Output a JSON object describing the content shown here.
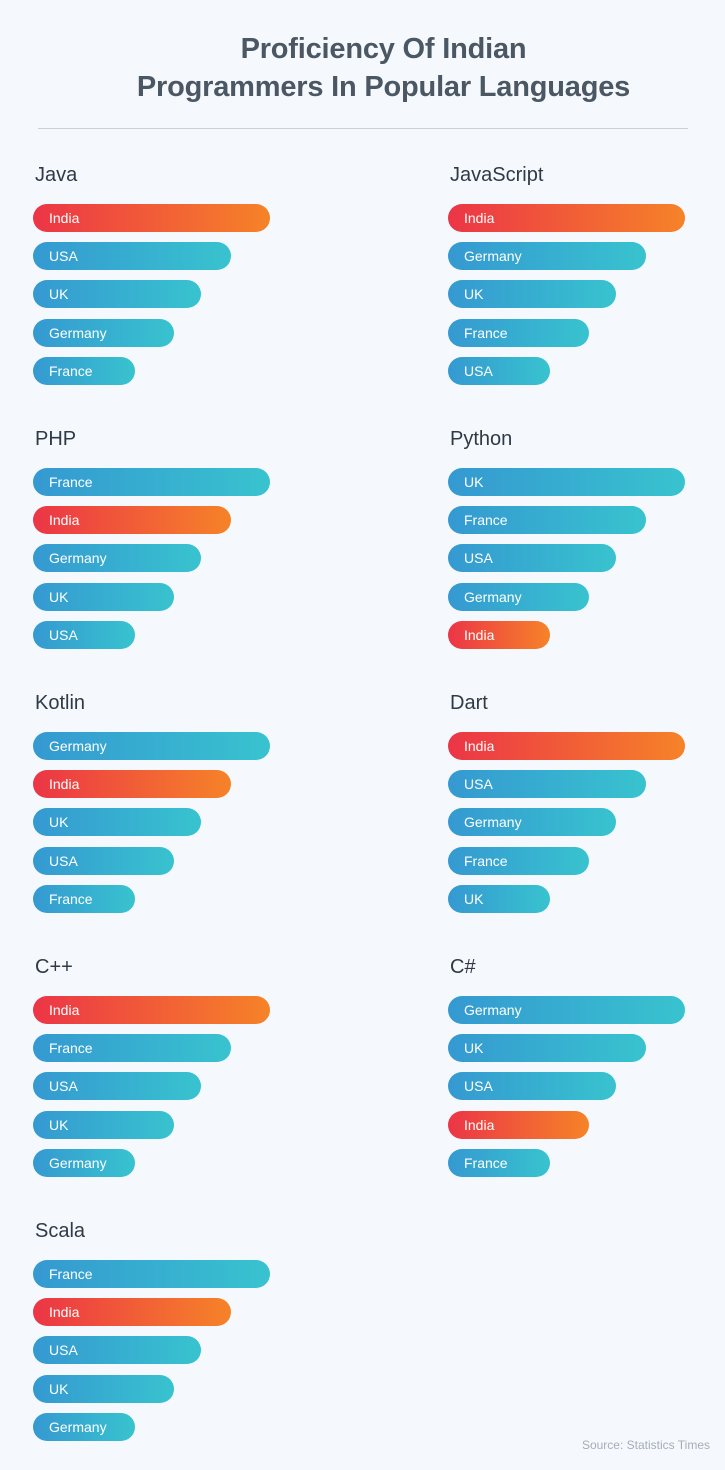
{
  "title_lines": [
    "Proficiency Of Indian",
    "Programmers In Popular Languages"
  ],
  "source": "Source: Statistics Times",
  "colors": {
    "bar_gradient": [
      "#3599d1",
      "#38c3cf"
    ],
    "india_gradient": [
      "#ec3547",
      "#f68328"
    ],
    "background": "#f5f9fd"
  },
  "chart_data": [
    {
      "type": "bar",
      "title": "Java",
      "categories": [
        "India",
        "USA",
        "UK",
        "Germany",
        "France"
      ],
      "ranks": [
        1,
        2,
        3,
        4,
        5
      ]
    },
    {
      "type": "bar",
      "title": "JavaScript",
      "categories": [
        "India",
        "Germany",
        "UK",
        "France",
        "USA"
      ],
      "ranks": [
        1,
        2,
        3,
        4,
        5
      ]
    },
    {
      "type": "bar",
      "title": "PHP",
      "categories": [
        "France",
        "India",
        "Germany",
        "UK",
        "USA"
      ],
      "ranks": [
        1,
        2,
        3,
        4,
        5
      ]
    },
    {
      "type": "bar",
      "title": "Python",
      "categories": [
        "UK",
        "France",
        "USA",
        "Germany",
        "India"
      ],
      "ranks": [
        1,
        2,
        3,
        4,
        5
      ]
    },
    {
      "type": "bar",
      "title": "Kotlin",
      "categories": [
        "Germany",
        "India",
        "UK",
        "USA",
        "France"
      ],
      "ranks": [
        1,
        2,
        3,
        4,
        5
      ]
    },
    {
      "type": "bar",
      "title": "Dart",
      "categories": [
        "India",
        "USA",
        "Germany",
        "France",
        "UK"
      ],
      "ranks": [
        1,
        2,
        3,
        4,
        5
      ]
    },
    {
      "type": "bar",
      "title": "C++",
      "categories": [
        "India",
        "France",
        "USA",
        "UK",
        "Germany"
      ],
      "ranks": [
        1,
        2,
        3,
        4,
        5
      ]
    },
    {
      "type": "bar",
      "title": "C#",
      "categories": [
        "Germany",
        "UK",
        "USA",
        "India",
        "France"
      ],
      "ranks": [
        1,
        2,
        3,
        4,
        5
      ]
    },
    {
      "type": "bar",
      "title": "Scala",
      "categories": [
        "France",
        "India",
        "USA",
        "UK",
        "Germany"
      ],
      "ranks": [
        1,
        2,
        3,
        4,
        5
      ]
    }
  ]
}
